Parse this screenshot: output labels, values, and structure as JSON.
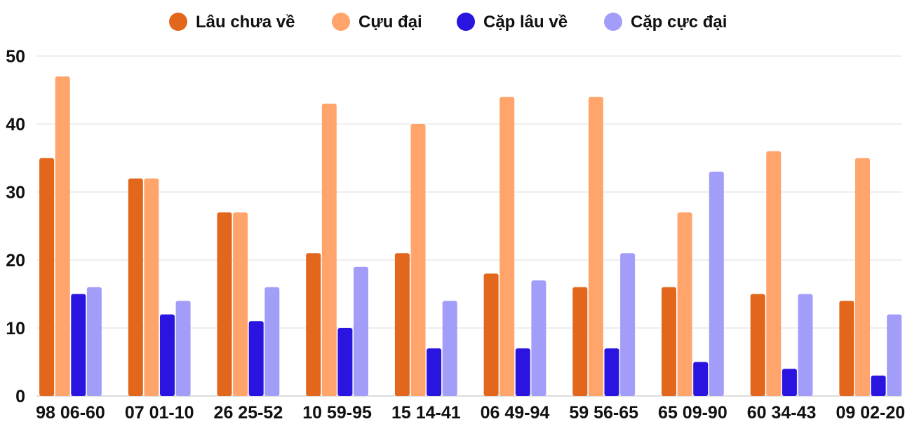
{
  "chart_data": {
    "type": "bar",
    "title": "",
    "xlabel": "",
    "ylabel": "",
    "ylim": [
      0,
      50
    ],
    "yticks": [
      0,
      10,
      20,
      30,
      40,
      50
    ],
    "grid": true,
    "legend_position": "top-center",
    "categories": [
      "98 06-60",
      "07 01-10",
      "26 25-52",
      "10 59-95",
      "15 14-41",
      "06 49-94",
      "59 56-65",
      "65 09-90",
      "60 34-43",
      "09 02-20"
    ],
    "series": [
      {
        "name": "Lâu chưa về",
        "color": "#e2661b",
        "values": [
          35,
          32,
          27,
          21,
          21,
          18,
          16,
          16,
          15,
          14
        ]
      },
      {
        "name": "Cựu đại",
        "color": "#ffa46b",
        "values": [
          47,
          32,
          27,
          43,
          40,
          44,
          44,
          27,
          36,
          35
        ]
      },
      {
        "name": "Cặp lâu về",
        "color": "#2a14e0",
        "values": [
          15,
          12,
          11,
          10,
          7,
          7,
          7,
          5,
          4,
          3
        ]
      },
      {
        "name": "Cặp cực đại",
        "color": "#a39dfa",
        "values": [
          16,
          14,
          16,
          19,
          14,
          17,
          21,
          33,
          15,
          12
        ]
      }
    ]
  }
}
